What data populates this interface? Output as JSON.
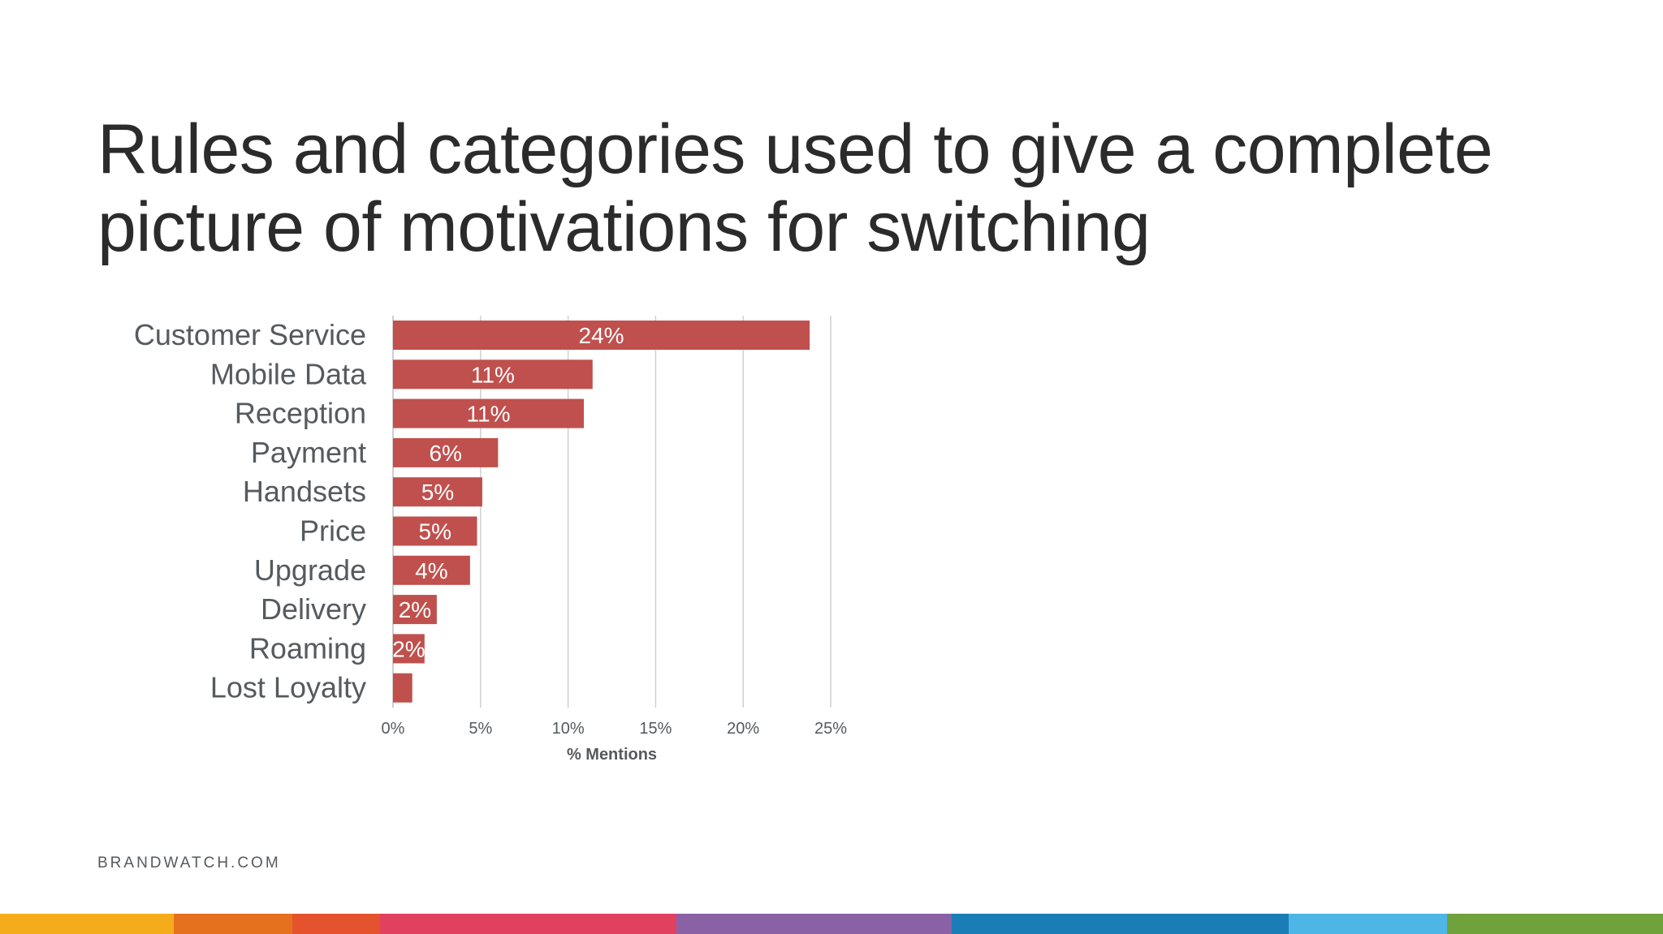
{
  "slide": {
    "title_line1": "Rules and categories used to give a complete",
    "title_line2": "picture of motivations for switching",
    "footer": "BRANDWATCH.COM"
  },
  "chart_data": {
    "type": "bar",
    "orientation": "horizontal",
    "categories": [
      "Customer Service",
      "Mobile Data",
      "Reception",
      "Payment",
      "Handsets",
      "Price",
      "Upgrade",
      "Delivery",
      "Roaming",
      "Lost Loyalty"
    ],
    "values": [
      23.8,
      11.4,
      10.9,
      6.0,
      5.1,
      4.8,
      4.4,
      2.5,
      1.8,
      1.1
    ],
    "data_labels": [
      "24%",
      "11%",
      "11%",
      "6%",
      "5%",
      "5%",
      "4%",
      "2%",
      "2%",
      ""
    ],
    "x_ticks": [
      "0%",
      "5%",
      "10%",
      "15%",
      "20%",
      "25%"
    ],
    "xlabel": "% Mentions",
    "xlim": [
      0,
      25
    ],
    "grid": true,
    "bar_color": "#c0504d",
    "grid_color": "#d0d0d0"
  },
  "strip_colors": [
    "#f5ac1a",
    "#e5701e",
    "#e4532d",
    "#e2405f",
    "#8b61a6",
    "#1a7db5",
    "#4db6e6",
    "#6fa23a"
  ]
}
